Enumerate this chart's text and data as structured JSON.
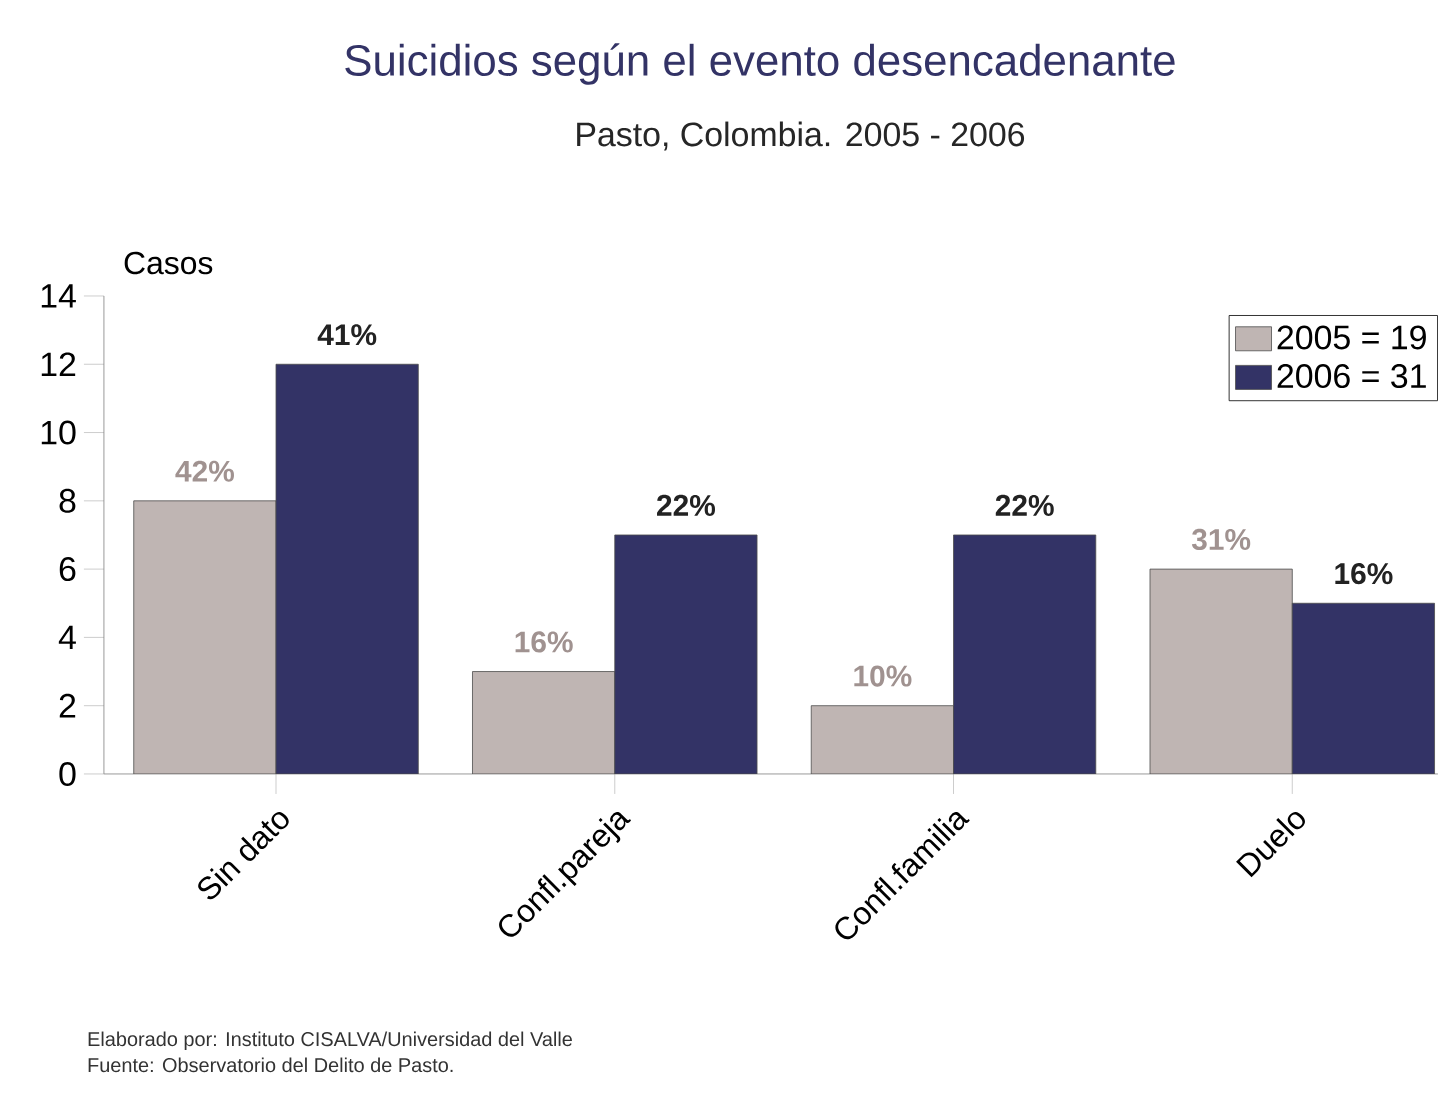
{
  "chart_data": {
    "type": "bar",
    "title": "Suicidios según el evento desencadenante",
    "subtitle": "Pasto, Colombia.  2005  -  2006",
    "ylabel": "Casos",
    "categories": [
      "Sin dato",
      "Confl.pareja",
      "Confl.familia",
      "Duelo"
    ],
    "series": [
      {
        "name": "2005 = 19",
        "color": "#bfb5b3",
        "values": [
          8,
          3,
          2,
          6
        ]
      },
      {
        "name": "2006 = 31",
        "color": "#333366",
        "values": [
          12,
          7,
          7,
          5
        ]
      }
    ],
    "ylim": [
      0,
      14
    ],
    "yticks": [
      0,
      2,
      4,
      6,
      8,
      10,
      12,
      14
    ],
    "legend": "top right",
    "annotations": [
      {
        "text": "42%",
        "x": "Sin dato",
        "y": 8
      },
      {
        "text": "16%",
        "x": "Confl.pareja",
        "y": 3
      },
      {
        "text": "10%",
        "x": "Confl.familia",
        "y": 2
      },
      {
        "text": "31%",
        "x": "Duelo",
        "y": 6
      },
      {
        "text": "41%",
        "x": "Sin dato",
        "y": 12
      },
      {
        "text": "22%",
        "x": "Confl.pareja",
        "y": 7
      },
      {
        "text": "22%",
        "x": "Confl.familia",
        "y": 7
      },
      {
        "text": "16%",
        "x": "Duelo",
        "y": 5
      },
      "Elaborado por: Instituto CISALVA/Universidad del Valle",
      "Fuente: Observatorio del Delito de Pasto."
    ]
  }
}
